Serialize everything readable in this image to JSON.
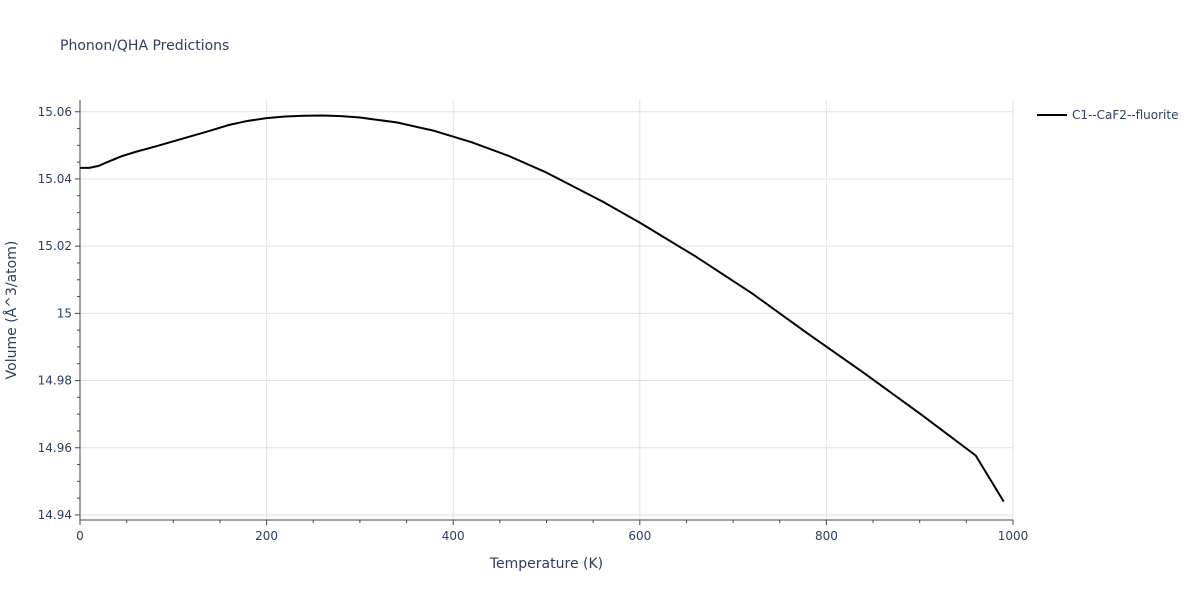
{
  "chart_data": {
    "type": "line",
    "title": "Phonon/QHA Predictions",
    "xlabel": "Temperature (K)",
    "ylabel": "Volume (Å^3/atom)",
    "xlim": [
      0,
      1000
    ],
    "ylim": [
      14.9385,
      15.0635
    ],
    "grid": true,
    "legend_position": "top-right",
    "x_ticks": [
      {
        "value": 0,
        "label": "0"
      },
      {
        "value": 200,
        "label": "200"
      },
      {
        "value": 400,
        "label": "400"
      },
      {
        "value": 600,
        "label": "600"
      },
      {
        "value": 800,
        "label": "800"
      },
      {
        "value": 1000,
        "label": "1000"
      }
    ],
    "y_ticks": [
      {
        "value": 14.94,
        "label": "14.94"
      },
      {
        "value": 14.96,
        "label": "14.96"
      },
      {
        "value": 14.98,
        "label": "14.98"
      },
      {
        "value": 15.0,
        "label": "15"
      },
      {
        "value": 15.02,
        "label": "15.02"
      },
      {
        "value": 15.04,
        "label": "15.04"
      },
      {
        "value": 15.06,
        "label": "15.06"
      }
    ],
    "series": [
      {
        "name": "C1--CaF2--fluorite",
        "color": "#000000",
        "x": [
          0,
          10,
          20,
          30,
          45,
          60,
          80,
          100,
          120,
          140,
          160,
          180,
          200,
          220,
          240,
          260,
          280,
          300,
          340,
          380,
          420,
          460,
          500,
          560,
          600,
          660,
          720,
          780,
          840,
          900,
          960,
          990
        ],
        "y": [
          15.0433,
          15.0433,
          15.0439,
          15.0451,
          15.0468,
          15.0481,
          15.0496,
          15.0512,
          15.0528,
          15.0544,
          15.0561,
          15.0573,
          15.0581,
          15.0586,
          15.0588,
          15.0589,
          15.0587,
          15.0583,
          15.0568,
          15.0543,
          15.0509,
          15.0468,
          15.0419,
          15.0333,
          15.027,
          15.0169,
          15.006,
          14.994,
          14.9823,
          14.9702,
          14.9577,
          14.944
        ]
      }
    ]
  }
}
